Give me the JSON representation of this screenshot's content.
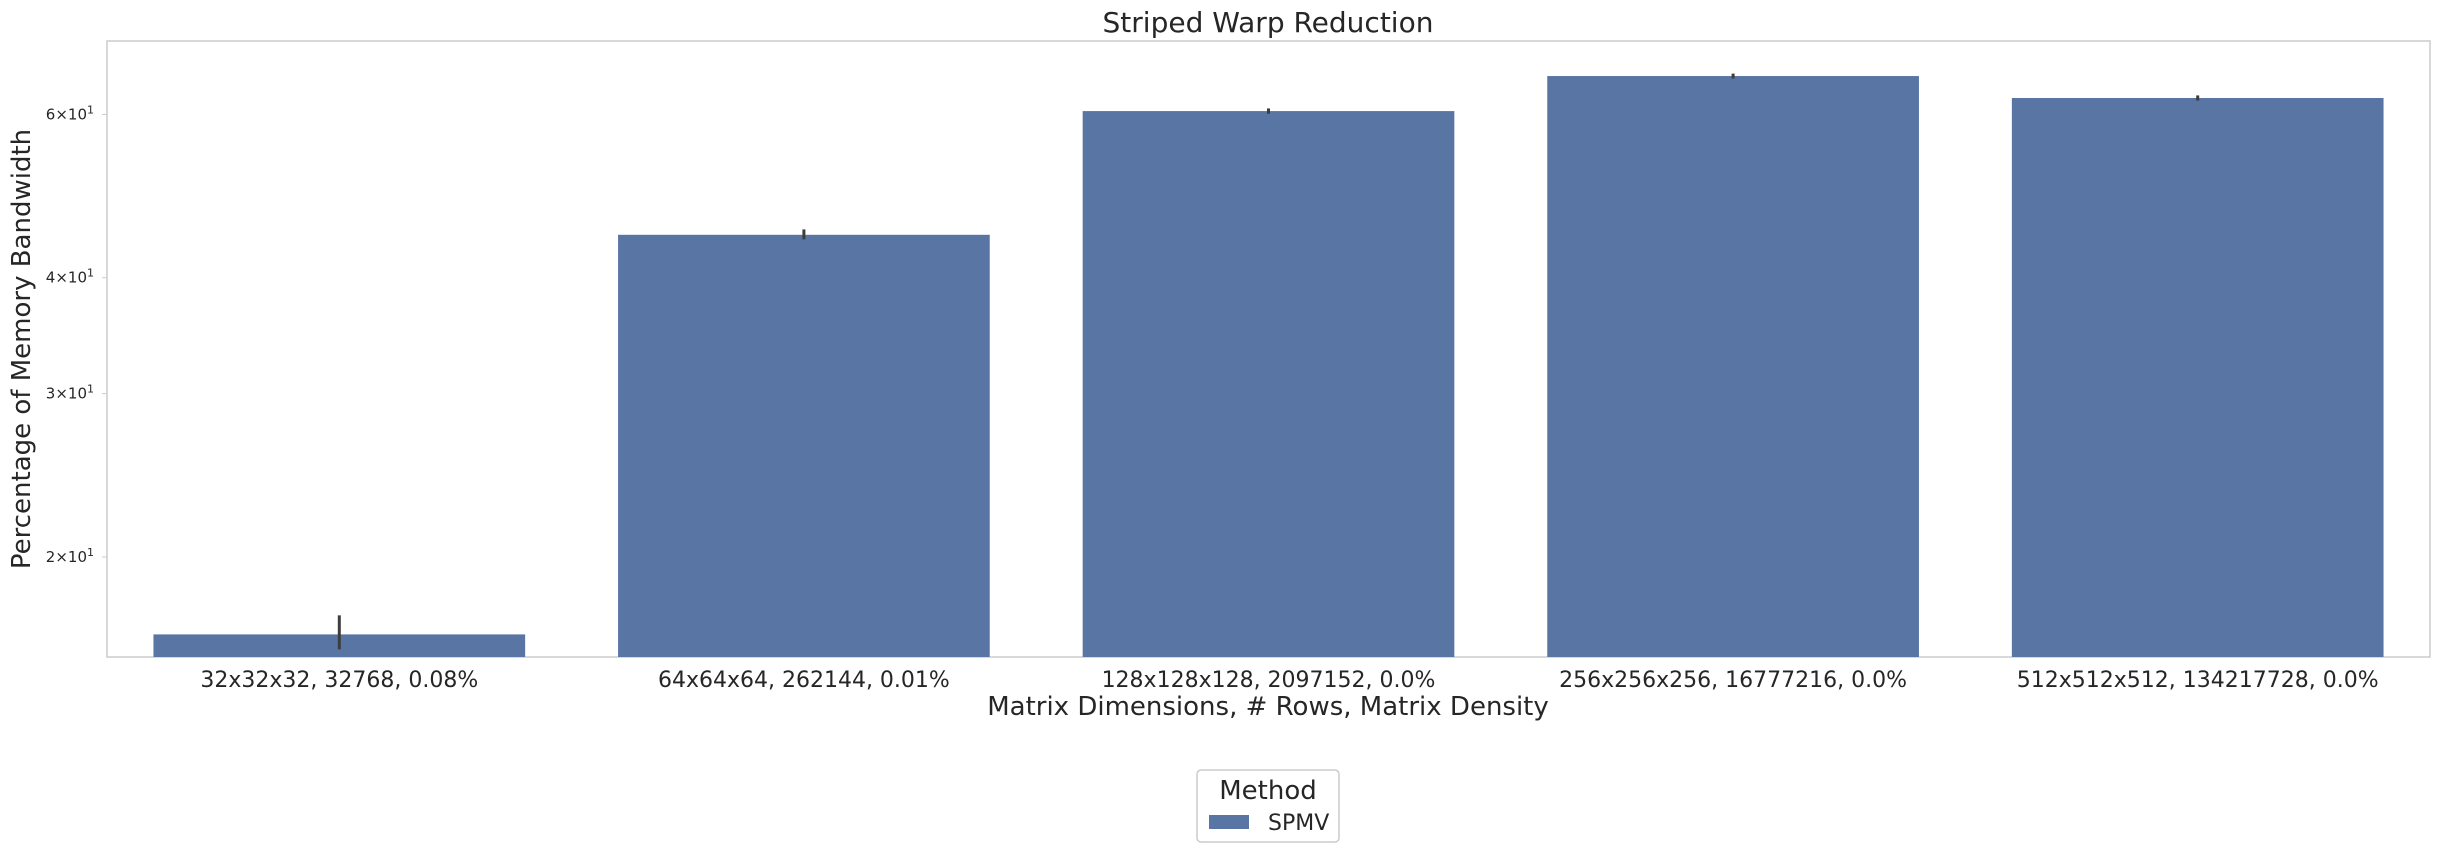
{
  "chart_data": {
    "type": "bar",
    "title": "Striped Warp Reduction",
    "xlabel": "Matrix Dimensions, # Rows, Matrix Density",
    "ylabel": "Percentage of Memory Bandwidth",
    "yscale": "log",
    "ylim": [
      15.6,
      72
    ],
    "grid": false,
    "categories": [
      "32x32x32, 32768, 0.08%",
      "64x64x64, 262144, 0.01%",
      "128x128x128, 2097152, 0.0%",
      "256x256x256, 16777216, 0.0%",
      "512x512x512, 134217728, 0.0%"
    ],
    "yticks": [
      {
        "value": 20,
        "base": "2",
        "exp": "1"
      },
      {
        "value": 30,
        "base": "3",
        "exp": "1"
      },
      {
        "value": 40,
        "base": "4",
        "exp": "1"
      },
      {
        "value": 60,
        "base": "6",
        "exp": "1"
      }
    ],
    "series": [
      {
        "name": "SPMV",
        "color": "#5875a4",
        "values": [
          16.5,
          44.5,
          60.5,
          66.0,
          62.5
        ],
        "err_low": [
          15.9,
          44.0,
          60.1,
          65.6,
          62.1
        ],
        "err_high": [
          17.3,
          45.1,
          60.9,
          66.4,
          62.9
        ]
      }
    ],
    "legend": {
      "title": "Method",
      "placement": "bottom-center"
    }
  }
}
